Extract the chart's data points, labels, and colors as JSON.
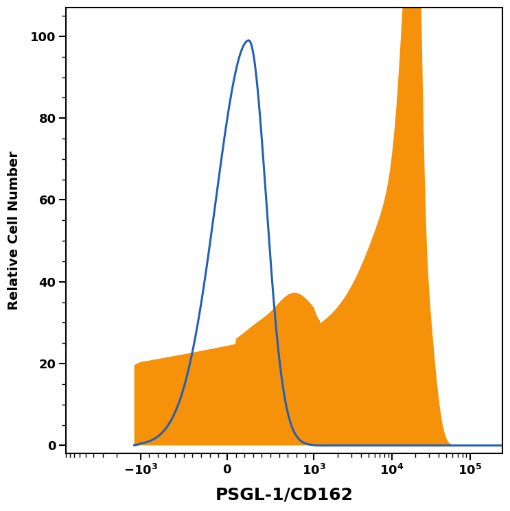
{
  "title": "",
  "xlabel": "PSGL-1/CD162",
  "ylabel": "Relative Cell Number",
  "xlabel_fontsize": 18,
  "ylabel_fontsize": 14,
  "xlabel_fontweight": "bold",
  "ylabel_fontweight": "bold",
  "xlim_min": -1200,
  "xlim_max": 260000,
  "ylim_min": -2,
  "ylim_max": 107,
  "blue_color": "#2060b8",
  "orange_color": "#f5920a",
  "blue_linewidth": 2.2,
  "tick_labelsize": 13,
  "background_color": "#ffffff",
  "yticks": [
    0,
    20,
    40,
    60,
    80,
    100
  ],
  "linthresh": 1000,
  "linscale": 1.0
}
